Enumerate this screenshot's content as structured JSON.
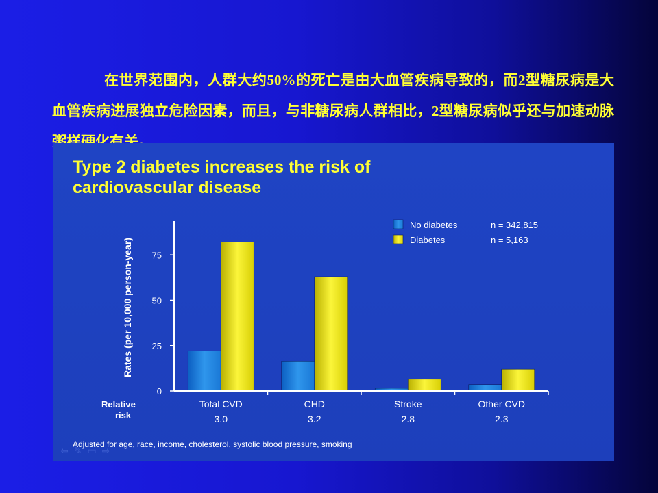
{
  "intro_text": "在世界范围内，人群大约50%的死亡是由大血管疾病导致的，而2型糖尿病是大血管疾病进展独立危险因素，而且，与非糖尿病人群相比，2型糖尿病似乎还与加速动脉粥样硬化有关。",
  "slide_nav_icons": [
    "back-arrow-icon",
    "pen-icon",
    "menu-icon",
    "forward-arrow-icon"
  ],
  "chart_data": {
    "type": "bar",
    "title_line1": "Type 2 diabetes increases the risk of",
    "title_line2": "cardiovascular disease",
    "ylabel": "Rates (per 10,000 person-year)",
    "xlabel": "",
    "ylim": [
      0,
      100
    ],
    "yticks": [
      0,
      25,
      50,
      75
    ],
    "categories": [
      "Total CVD",
      "CHD",
      "Stroke",
      "Other CVD"
    ],
    "series": [
      {
        "name": "No diabetes",
        "n": "n = 342,815",
        "values": [
          22,
          16.5,
          1.5,
          3.5
        ],
        "color": "#1e7fdc"
      },
      {
        "name": "Diabetes",
        "n": "n = 5,163",
        "values": [
          82,
          63,
          6.5,
          12
        ],
        "color": "#e9e20c"
      }
    ],
    "relative_risk_label": "Relative risk",
    "relative_risk": [
      "3.0",
      "3.2",
      "2.8",
      "2.3"
    ],
    "footnote": "Adjusted for age, race, income, cholesterol, systolic blood pressure, smoking",
    "legend_position": "top-right",
    "grid": false,
    "colors": {
      "panel": "#1f44c4",
      "title": "#ffff33",
      "text": "#ffffff",
      "axis": "#ffffff"
    }
  }
}
